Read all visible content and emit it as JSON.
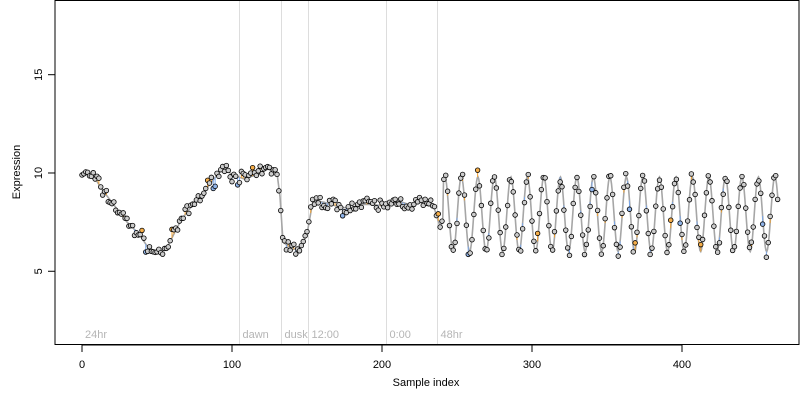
{
  "chart_data": {
    "type": "scatter",
    "title": "",
    "xlabel": "Sample index",
    "ylabel": "Expression",
    "xlim": [
      -18,
      478
    ],
    "ylim": [
      1.3,
      18.8
    ],
    "x_ticks": [
      0,
      100,
      200,
      300,
      400
    ],
    "y_ticks": [
      5,
      10,
      15
    ],
    "grid": false,
    "colors": {
      "point_fill": "#cccccc",
      "point_fill_high": "#f5ae4a",
      "point_fill_low": "#8fb3e8",
      "point_stroke": "#000000",
      "trend_line": "#a6a6a6",
      "residual_up": "#f0a030",
      "residual_down": "#7ba6e6",
      "phase_line": "#dddddd",
      "phase_text": "#b5b5b5"
    },
    "phase_markers": [
      {
        "x": 0,
        "label": "24hr",
        "line": false
      },
      {
        "x": 105,
        "label": "dawn",
        "line": true
      },
      {
        "x": 133,
        "label": "dusk",
        "line": true
      },
      {
        "x": 151,
        "label": "12:00",
        "line": true
      },
      {
        "x": 203,
        "label": "0:00",
        "line": true
      },
      {
        "x": 237,
        "label": "48hr",
        "line": true
      }
    ],
    "anchors": [
      {
        "x": 0,
        "y": 10.0
      },
      {
        "x": 8,
        "y": 9.8
      },
      {
        "x": 14,
        "y": 9.1
      },
      {
        "x": 22,
        "y": 8.3
      },
      {
        "x": 30,
        "y": 7.5
      },
      {
        "x": 38,
        "y": 6.9
      },
      {
        "x": 45,
        "y": 6.1
      },
      {
        "x": 52,
        "y": 5.9
      },
      {
        "x": 58,
        "y": 6.4
      },
      {
        "x": 66,
        "y": 7.6
      },
      {
        "x": 74,
        "y": 8.4
      },
      {
        "x": 82,
        "y": 9.1
      },
      {
        "x": 90,
        "y": 9.9
      },
      {
        "x": 95,
        "y": 10.3
      },
      {
        "x": 100,
        "y": 9.9
      },
      {
        "x": 108,
        "y": 9.7
      },
      {
        "x": 116,
        "y": 9.9
      },
      {
        "x": 124,
        "y": 10.2
      },
      {
        "x": 130,
        "y": 10.0
      },
      {
        "x": 132,
        "y": 8.8
      },
      {
        "x": 134,
        "y": 6.5
      },
      {
        "x": 140,
        "y": 6.1
      },
      {
        "x": 146,
        "y": 6.2
      },
      {
        "x": 150,
        "y": 6.9
      },
      {
        "x": 154,
        "y": 8.6
      },
      {
        "x": 162,
        "y": 8.5
      },
      {
        "x": 170,
        "y": 8.3
      },
      {
        "x": 178,
        "y": 8.2
      },
      {
        "x": 186,
        "y": 8.4
      },
      {
        "x": 194,
        "y": 8.4
      },
      {
        "x": 202,
        "y": 8.3
      },
      {
        "x": 210,
        "y": 8.6
      },
      {
        "x": 218,
        "y": 8.4
      },
      {
        "x": 226,
        "y": 8.5
      },
      {
        "x": 234,
        "y": 8.4
      },
      {
        "x": 239,
        "y": 7.2
      },
      {
        "x": 241,
        "y": 7.8
      }
    ],
    "oscillation": {
      "x_start": 241,
      "x_end": 464,
      "center": 7.9,
      "amplitude": 1.9,
      "period": 11.0
    }
  }
}
